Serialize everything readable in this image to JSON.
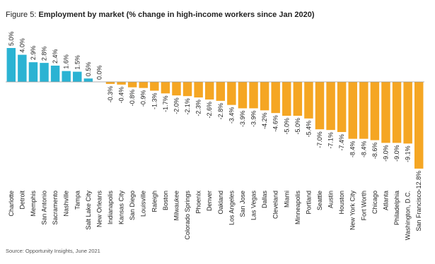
{
  "chart_data": {
    "type": "bar",
    "figure_label": "Figure 5:",
    "title": "Employment by market (% change in high-income workers since Jan 2020)",
    "source": "Source: Opportunity Insights, June 2021",
    "categories": [
      "Charlotte",
      "Detroit",
      "Memphis",
      "San Antonio",
      "Sacramento",
      "Nashville",
      "Tampa",
      "Salt Lake City",
      "New Orleans",
      "Indianapolis",
      "Kansas City",
      "San Diego",
      "Louisville",
      "Raleigh",
      "Boston",
      "Milwaukee",
      "Colorado Springs",
      "Phoenix",
      "Denver",
      "Oakland",
      "Los Angeles",
      "San Jose",
      "Las Vegas",
      "Dallas",
      "Cleveland",
      "Miami",
      "Minneapolis",
      "Portland",
      "Seattle",
      "Austin",
      "Houston",
      "New York City",
      "Fort Worth",
      "Chicago",
      "Atlanta",
      "Philadelphia",
      "Washington, D.C.",
      "San Francisco"
    ],
    "values": [
      5.0,
      4.0,
      2.9,
      2.8,
      2.4,
      1.6,
      1.5,
      0.5,
      0.0,
      -0.3,
      -0.4,
      -0.8,
      -0.9,
      -1.3,
      -1.7,
      -2.0,
      -2.1,
      -2.3,
      -2.6,
      -2.8,
      -3.4,
      -3.9,
      -3.9,
      -4.2,
      -4.6,
      -5.0,
      -5.0,
      -5.4,
      -7.0,
      -7.1,
      -7.4,
      -8.4,
      -8.4,
      -8.6,
      -9.0,
      -9.0,
      -9.1,
      -12.8
    ],
    "value_labels": [
      "5.0%",
      "4.0%",
      "2.9%",
      "2.8%",
      "2.4%",
      "1.6%",
      "1.5%",
      "0.5%",
      "0.0%",
      "-0.3%",
      "-0.4%",
      "-0.8%",
      "-0.9%",
      "-1.3%",
      "-1.7%",
      "-2.0%",
      "-2.1%",
      "-2.3%",
      "-2.6%",
      "-2.8%",
      "-3.4%",
      "-3.9%",
      "-3.9%",
      "-4.2%",
      "-4.6%",
      "-5.0%",
      "-5.0%",
      "-5.4%",
      "-7.0%",
      "-7.1%",
      "-7.4%",
      "-8.4%",
      "-8.4%",
      "-8.6%",
      "-9.0%",
      "-9.0%",
      "-9.1%",
      "-12.8%"
    ],
    "positive_color": "#2bb3d3",
    "negative_color": "#f5a623",
    "ylim": [
      -13,
      5.5
    ]
  }
}
